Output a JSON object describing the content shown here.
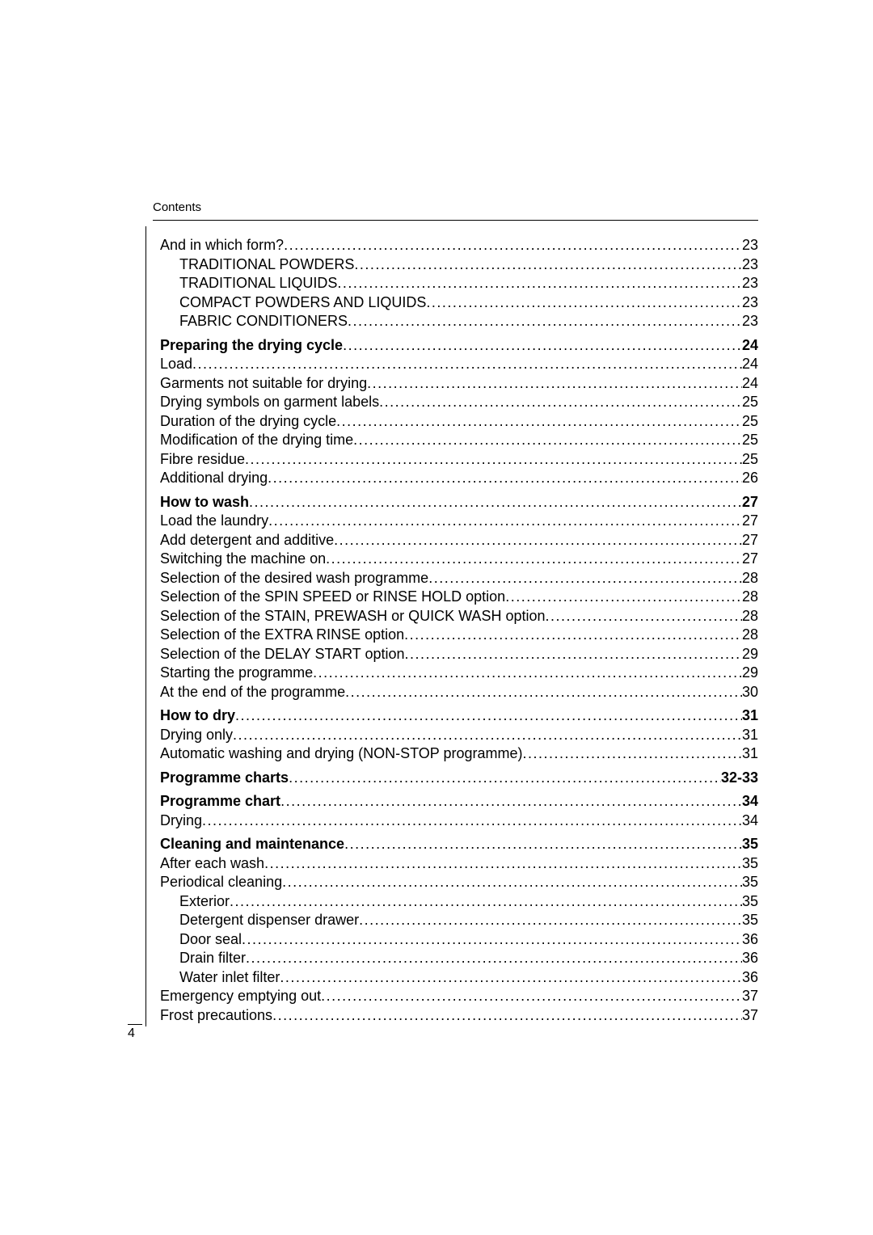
{
  "header": {
    "label": "Contents"
  },
  "footer": {
    "page_number": "4"
  },
  "toc": {
    "dot_char": ".",
    "groups": [
      {
        "gap_before": false,
        "lines": [
          {
            "text": "And in which form?",
            "page": "23",
            "bold": false,
            "indent": 0
          },
          {
            "text": "TRADITIONAL POWDERS",
            "page": "23",
            "bold": false,
            "indent": 1
          },
          {
            "text": "TRADITIONAL LIQUIDS",
            "page": "23",
            "bold": false,
            "indent": 1
          },
          {
            "text": "COMPACT POWDERS AND LIQUIDS",
            "page": "23",
            "bold": false,
            "indent": 1
          },
          {
            "text": "FABRIC CONDITIONERS",
            "page": "23",
            "bold": false,
            "indent": 1
          }
        ]
      },
      {
        "gap_before": true,
        "lines": [
          {
            "text": "Preparing the drying cycle",
            "page": "24",
            "bold": true,
            "indent": 0
          },
          {
            "text": "Load",
            "page": "24",
            "bold": false,
            "indent": 0
          },
          {
            "text": "Garments not suitable for drying",
            "page": "24",
            "bold": false,
            "indent": 0
          },
          {
            "text": "Drying symbols on garment labels",
            "page": "25",
            "bold": false,
            "indent": 0
          },
          {
            "text": "Duration of the drying cycle",
            "page": "25",
            "bold": false,
            "indent": 0
          },
          {
            "text": "Modification of the drying time",
            "page": "25",
            "bold": false,
            "indent": 0
          },
          {
            "text": "Fibre residue",
            "page": "25",
            "bold": false,
            "indent": 0
          },
          {
            "text": "Additional drying",
            "page": "26",
            "bold": false,
            "indent": 0
          }
        ]
      },
      {
        "gap_before": true,
        "lines": [
          {
            "text": "How to wash",
            "page": "27",
            "bold": true,
            "indent": 0
          },
          {
            "text": "Load the laundry",
            "page": "27",
            "bold": false,
            "indent": 0
          },
          {
            "text": "Add detergent and additive",
            "page": "27",
            "bold": false,
            "indent": 0
          },
          {
            "text": "Switching the machine on",
            "page": "27",
            "bold": false,
            "indent": 0
          },
          {
            "text": "Selection of the desired wash programme",
            "page": "28",
            "bold": false,
            "indent": 0
          },
          {
            "text": "Selection of the SPIN SPEED or RINSE HOLD option",
            "page": "28",
            "bold": false,
            "indent": 0
          },
          {
            "text": "Selection of the STAIN, PREWASH or QUICK WASH option",
            "page": "28",
            "bold": false,
            "indent": 0
          },
          {
            "text": "Selection of the EXTRA RINSE option",
            "page": "28",
            "bold": false,
            "indent": 0
          },
          {
            "text": "Selection of the DELAY START option",
            "page": "29",
            "bold": false,
            "indent": 0
          },
          {
            "text": "Starting the programme",
            "page": "29",
            "bold": false,
            "indent": 0
          },
          {
            "text": "At the end of the programme",
            "page": "30",
            "bold": false,
            "indent": 0
          }
        ]
      },
      {
        "gap_before": true,
        "lines": [
          {
            "text": "How to dry",
            "page": "31",
            "bold": true,
            "indent": 0
          },
          {
            "text": "Drying only",
            "page": "31",
            "bold": false,
            "indent": 0
          },
          {
            "text": "Automatic washing and drying (NON-STOP programme)",
            "page": "31",
            "bold": false,
            "indent": 0
          }
        ]
      },
      {
        "gap_before": true,
        "lines": [
          {
            "text": "Programme charts",
            "page": "32-33",
            "bold": true,
            "indent": 0
          }
        ]
      },
      {
        "gap_before": true,
        "lines": [
          {
            "text": "Programme chart",
            "page": "34",
            "bold": true,
            "indent": 0
          },
          {
            "text": "Drying",
            "page": "34",
            "bold": false,
            "indent": 0
          }
        ]
      },
      {
        "gap_before": true,
        "lines": [
          {
            "text": "Cleaning and maintenance",
            "page": "35",
            "bold": true,
            "indent": 0
          },
          {
            "text": "After each wash",
            "page": "35",
            "bold": false,
            "indent": 0
          },
          {
            "text": "Periodical cleaning",
            "page": "35",
            "bold": false,
            "indent": 0
          },
          {
            "text": "Exterior",
            "page": "35",
            "bold": false,
            "indent": 1
          },
          {
            "text": "Detergent dispenser drawer",
            "page": "35",
            "bold": false,
            "indent": 1
          },
          {
            "text": "Door seal",
            "page": "36",
            "bold": false,
            "indent": 1
          },
          {
            "text": "Drain filter",
            "page": "36",
            "bold": false,
            "indent": 1
          },
          {
            "text": "Water inlet filter",
            "page": "36",
            "bold": false,
            "indent": 1
          },
          {
            "text": "Emergency emptying out",
            "page": "37",
            "bold": false,
            "indent": 0
          },
          {
            "text": "Frost precautions",
            "page": "37",
            "bold": false,
            "indent": 0
          }
        ]
      }
    ]
  }
}
